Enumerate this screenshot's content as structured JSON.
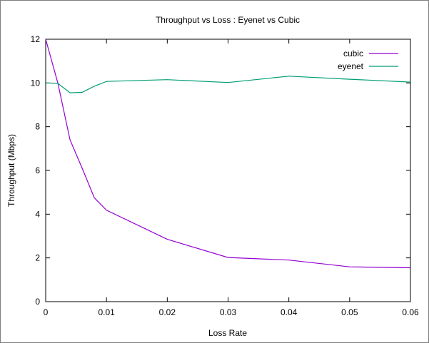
{
  "chart_data": {
    "type": "line",
    "title": "Throughput vs Loss : Eyenet vs Cubic",
    "xlabel": "Loss Rate",
    "ylabel": "Throughput (Mbps)",
    "xlim": [
      0,
      0.06
    ],
    "ylim": [
      0,
      12
    ],
    "xticks": [
      0,
      0.01,
      0.02,
      0.03,
      0.04,
      0.05,
      0.06
    ],
    "xtick_labels": [
      "0",
      "0.01",
      "0.02",
      "0.03",
      "0.04",
      "0.05",
      "0.06"
    ],
    "yticks": [
      0,
      2,
      4,
      6,
      8,
      10,
      12
    ],
    "ytick_labels": [
      "0",
      "2",
      "4",
      "6",
      "8",
      "10",
      "12"
    ],
    "grid": false,
    "legend_position": "top-right",
    "series": [
      {
        "name": "cubic",
        "color": "#9400d3",
        "x": [
          0,
          0.002,
          0.004,
          0.006,
          0.008,
          0.01,
          0.02,
          0.03,
          0.04,
          0.05,
          0.06
        ],
        "y": [
          12.0,
          10.0,
          7.4,
          6.1,
          4.75,
          4.18,
          2.85,
          2.02,
          1.9,
          1.59,
          1.55
        ]
      },
      {
        "name": "eyenet",
        "color": "#009e73",
        "x": [
          0,
          0.002,
          0.004,
          0.006,
          0.008,
          0.01,
          0.02,
          0.03,
          0.04,
          0.05,
          0.06
        ],
        "y": [
          10.0,
          9.98,
          9.55,
          9.57,
          9.85,
          10.07,
          10.15,
          10.02,
          10.31,
          10.17,
          10.04
        ]
      }
    ]
  }
}
